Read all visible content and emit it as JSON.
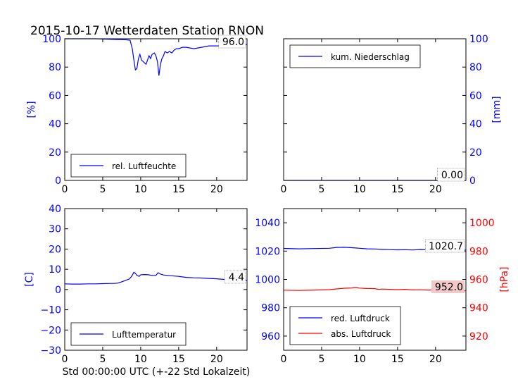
{
  "figure": {
    "title": "2015-10-17 Wetterdaten Station RNON",
    "xlabel": "Std 00:00:00 UTC (+-22 Std Lokalzeit)"
  },
  "colors": {
    "primary": "#0000ff",
    "secondary": "#ff0000",
    "box_red": "#f2c8c8",
    "frame": "#000000"
  },
  "chart_data": [
    {
      "type": "line",
      "panel": "top-left",
      "ylabel": "[%]",
      "ylabel_color": "blue",
      "ylabel_side": "left",
      "xlim": [
        0,
        24
      ],
      "ylim": [
        0,
        100
      ],
      "xticks": [
        "0",
        "5",
        "10",
        "15",
        "20"
      ],
      "yticks": [
        "0",
        "20",
        "40",
        "60",
        "80",
        "100"
      ],
      "legend": "bottom-left",
      "series": [
        {
          "name": "rel. Luftfeuchte",
          "color": "blue",
          "x": [
            0,
            2,
            4,
            6,
            8,
            8.6,
            8.9,
            9.1,
            9.3,
            9.5,
            9.7,
            9.9,
            10.1,
            10.3,
            10.5,
            10.7,
            10.9,
            11.1,
            11.3,
            11.5,
            11.8,
            12.0,
            12.2,
            12.4,
            12.6,
            12.8,
            13.0,
            13.2,
            13.5,
            13.8,
            14.1,
            14.4,
            14.7,
            15.0,
            15.5,
            16.0,
            17.0,
            18.0,
            19.0,
            20.0,
            21.0,
            22.0,
            23.0,
            24.0
          ],
          "y": [
            100,
            100,
            100,
            99.6,
            99.3,
            99.0,
            93,
            85,
            78,
            79,
            86,
            89,
            85,
            84,
            83,
            82,
            85,
            88,
            86,
            89,
            90,
            88,
            84,
            74,
            82,
            86,
            88,
            91,
            90,
            91,
            90,
            92,
            93,
            93,
            94,
            94,
            93,
            94,
            95,
            95,
            95,
            96,
            96,
            96
          ]
        }
      ],
      "value_label": "96.0"
    },
    {
      "type": "line",
      "panel": "top-right",
      "ylabel": "[mm]",
      "ylabel_color": "blue",
      "ylabel_side": "right",
      "xlim": [
        0,
        24
      ],
      "ylim": [
        0,
        100
      ],
      "xticks": [
        "0",
        "5",
        "10",
        "15",
        "20"
      ],
      "yticks": [
        "0",
        "20",
        "40",
        "60",
        "80",
        "100"
      ],
      "legend": "top-left",
      "series": [
        {
          "name": "kum. Niederschlag",
          "color": "blue",
          "x": [
            0,
            24
          ],
          "y": [
            0,
            0
          ]
        }
      ],
      "value_label": "0.00"
    },
    {
      "type": "line",
      "panel": "bottom-left",
      "ylabel": "[C]",
      "ylabel_color": "blue",
      "ylabel_side": "left",
      "xlim": [
        0,
        24
      ],
      "ylim": [
        -30,
        40
      ],
      "xticks": [
        "0",
        "5",
        "10",
        "15",
        "20"
      ],
      "yticks": [
        "−30",
        "−20",
        "−10",
        "0",
        "10",
        "20",
        "30",
        "40"
      ],
      "legend": "bottom-left",
      "series": [
        {
          "name": "Lufttemperatur",
          "color": "blue",
          "x": [
            0,
            1,
            2,
            3,
            4,
            5,
            6,
            6.5,
            7,
            7.5,
            8,
            8.5,
            8.8,
            9.1,
            9.3,
            9.5,
            9.8,
            10,
            10.5,
            11,
            11.5,
            12,
            12.3,
            12.6,
            13,
            13.5,
            14,
            15,
            16,
            17,
            18,
            19,
            20,
            21,
            22,
            23,
            24
          ],
          "y": [
            2.8,
            2.7,
            2.7,
            2.8,
            2.8,
            2.9,
            3.0,
            3.0,
            3.2,
            3.8,
            4.5,
            5.2,
            6.5,
            8.5,
            8.0,
            7.0,
            6.5,
            7.3,
            7.4,
            7.3,
            7.0,
            7.0,
            8.3,
            7.6,
            7.2,
            7.0,
            6.8,
            6.5,
            6.0,
            5.8,
            5.7,
            5.5,
            5.3,
            5.0,
            4.8,
            4.6,
            4.4
          ]
        }
      ],
      "value_label": "4.4"
    },
    {
      "type": "line",
      "panel": "bottom-right",
      "ylabel": "[hPa]",
      "ylabel_color": "red",
      "ylabel_side": "right",
      "xlim": [
        0,
        24
      ],
      "ylim_left": [
        950,
        1050
      ],
      "ylim_right": [
        910,
        1010
      ],
      "xticks": [
        "0",
        "5",
        "10",
        "15",
        "20"
      ],
      "yticks_left": [
        "960",
        "980",
        "1000",
        "1020",
        "1040"
      ],
      "yticks_right": [
        "920",
        "940",
        "960",
        "980",
        "1000"
      ],
      "legend": "bottom-left",
      "series": [
        {
          "name": "red. Luftdruck",
          "color": "blue",
          "axis": "left",
          "x": [
            0,
            2,
            4,
            6,
            7,
            8,
            9,
            10,
            11,
            12,
            13,
            14,
            15,
            16,
            17,
            18,
            19,
            20,
            21,
            22,
            23,
            24
          ],
          "y": [
            1021.9,
            1021.6,
            1021.8,
            1022.0,
            1022.6,
            1022.7,
            1022.4,
            1022.0,
            1021.6,
            1021.5,
            1021.2,
            1021.0,
            1020.9,
            1021.0,
            1020.8,
            1021.1,
            1021.0,
            1021.2,
            1021.1,
            1020.9,
            1020.7,
            1020.7
          ]
        },
        {
          "name": "abs. Luftdruck",
          "color": "red",
          "axis": "right",
          "x": [
            0,
            2,
            4,
            6,
            7,
            8,
            9,
            9.5,
            10,
            11,
            12,
            12.5,
            13,
            14,
            15,
            16,
            17,
            18,
            19,
            20,
            21,
            22,
            23,
            24
          ],
          "y": [
            952.4,
            952.2,
            952.5,
            952.8,
            953.3,
            953.8,
            954.0,
            954.3,
            953.9,
            953.6,
            953.5,
            953.0,
            953.2,
            953.0,
            952.8,
            953.0,
            952.6,
            952.7,
            952.5,
            952.6,
            952.4,
            952.2,
            952.1,
            952.0
          ]
        }
      ],
      "value_label_blue": "1020.7",
      "value_label_red": "952.0"
    }
  ]
}
